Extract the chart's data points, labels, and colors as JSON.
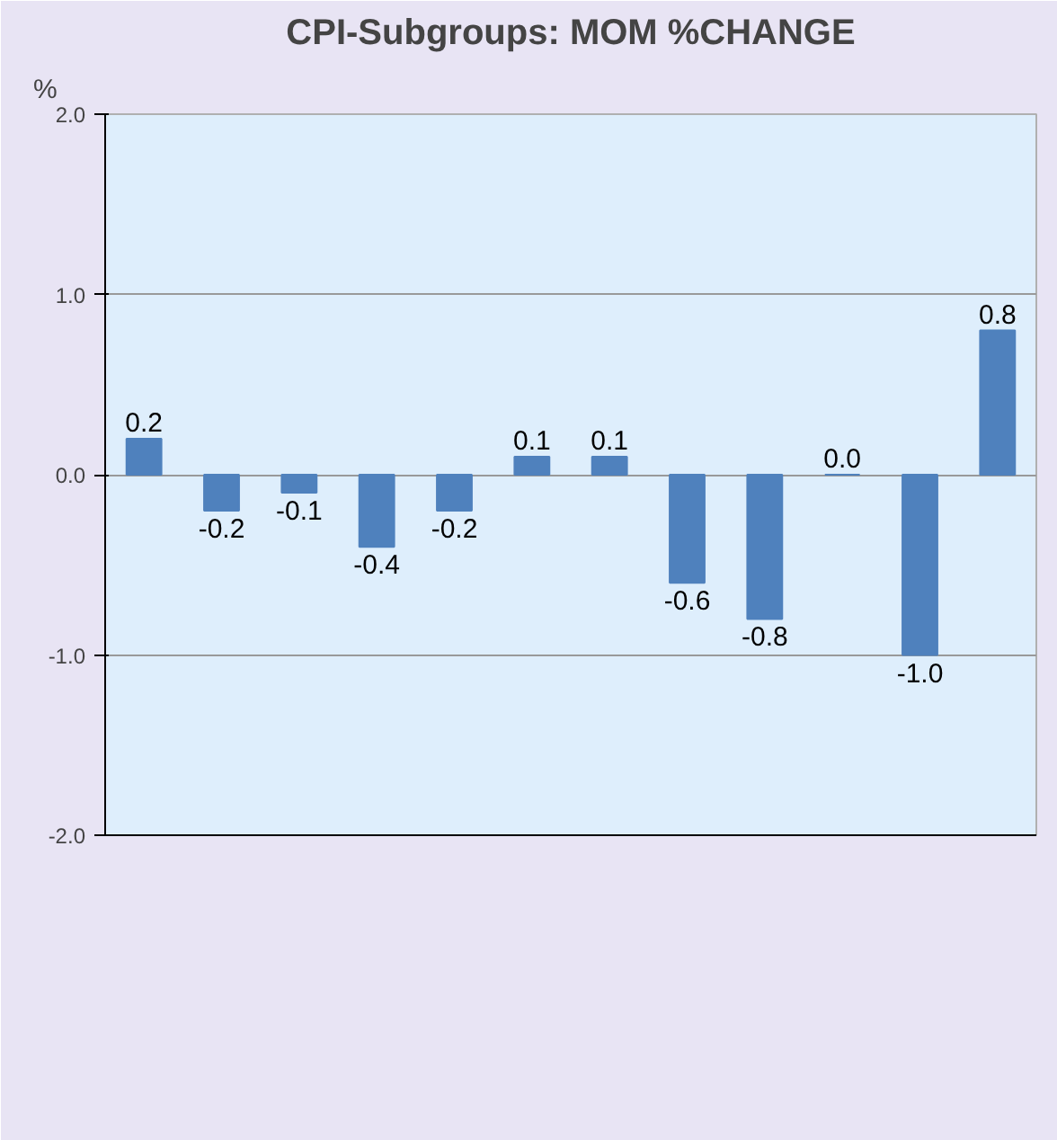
{
  "chart_data": {
    "type": "bar",
    "title": "CPI-Subgroups: MOM %CHANGE",
    "ylabel": "%",
    "categories": [
      null,
      null,
      null,
      null,
      null,
      null,
      null,
      null,
      null,
      null,
      null,
      null
    ],
    "values": [
      0.2,
      -0.2,
      -0.1,
      -0.4,
      -0.2,
      0.1,
      0.1,
      -0.6,
      -0.8,
      0.0,
      -1.0,
      0.8
    ],
    "value_labels": [
      "0.2",
      "-0.2",
      "-0.1",
      "-0.4",
      "-0.2",
      "0.1",
      "0.1",
      "-0.6",
      "-0.8",
      "0.0",
      "-1.0",
      "0.8"
    ],
    "color": "#4f81bd",
    "ylim": [
      -2.0,
      2.0
    ],
    "yticks": [
      {
        "value": -2.0,
        "label": "-2.0"
      },
      {
        "value": -1.0,
        "label": "-1.0"
      },
      {
        "value": 0.0,
        "label": "0.0"
      },
      {
        "value": 1.0,
        "label": "1.0"
      },
      {
        "value": 2.0,
        "label": "2.0"
      }
    ],
    "grid": "y",
    "tick_labels": "y"
  }
}
